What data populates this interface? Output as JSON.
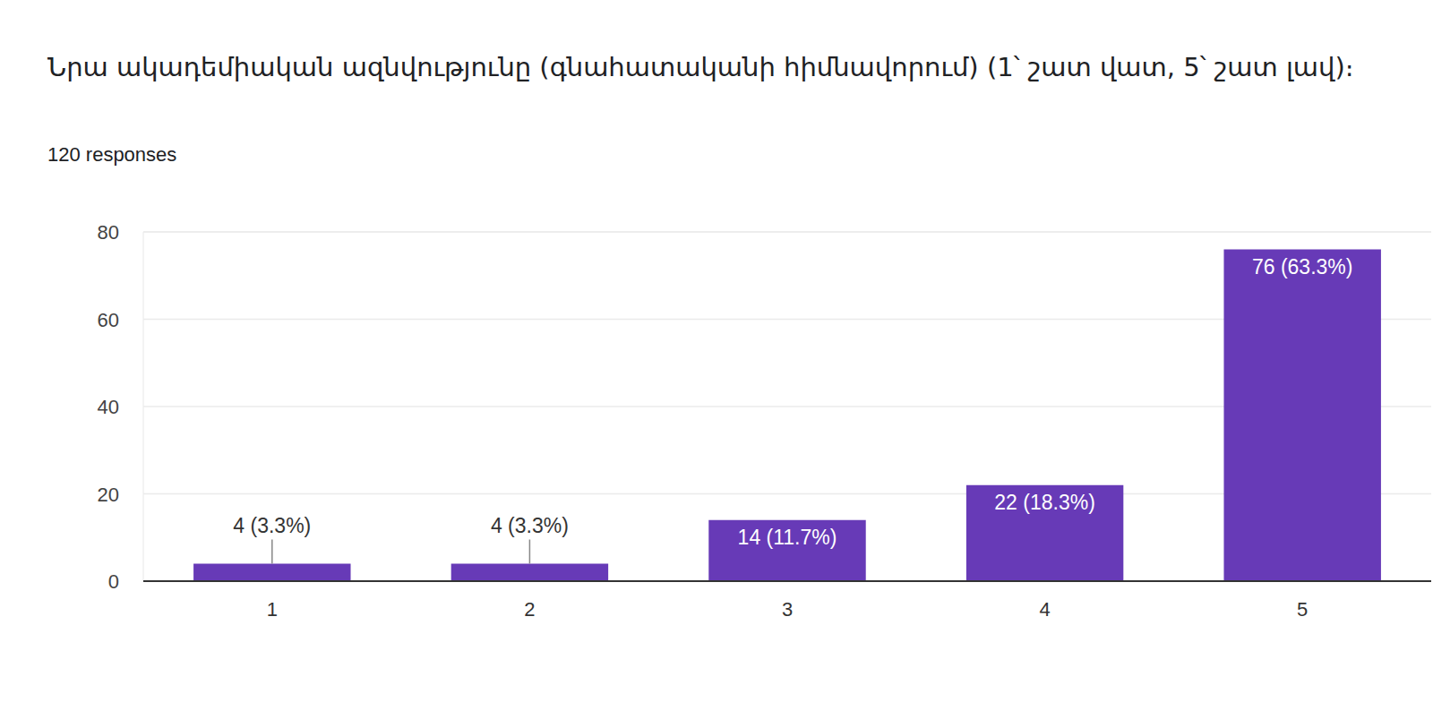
{
  "chart_data": {
    "type": "bar",
    "title": "Նրա ակադեմիական ազնվությունը (գնահատականի հիմնավորում)  (1՝ շատ վատ, 5՝ շատ լավ)։",
    "subtitle": "120 responses",
    "categories": [
      "1",
      "2",
      "3",
      "4",
      "5"
    ],
    "values": [
      4,
      4,
      14,
      22,
      76
    ],
    "value_labels": [
      "4 (3.3%)",
      "4 (3.3%)",
      "14 (11.7%)",
      "22 (18.3%)",
      "76 (63.3%)"
    ],
    "color": "#673ab7",
    "ylim": [
      0,
      80
    ],
    "yticks": [
      0,
      20,
      40,
      60,
      80
    ],
    "grid": true,
    "data_labels": true
  }
}
